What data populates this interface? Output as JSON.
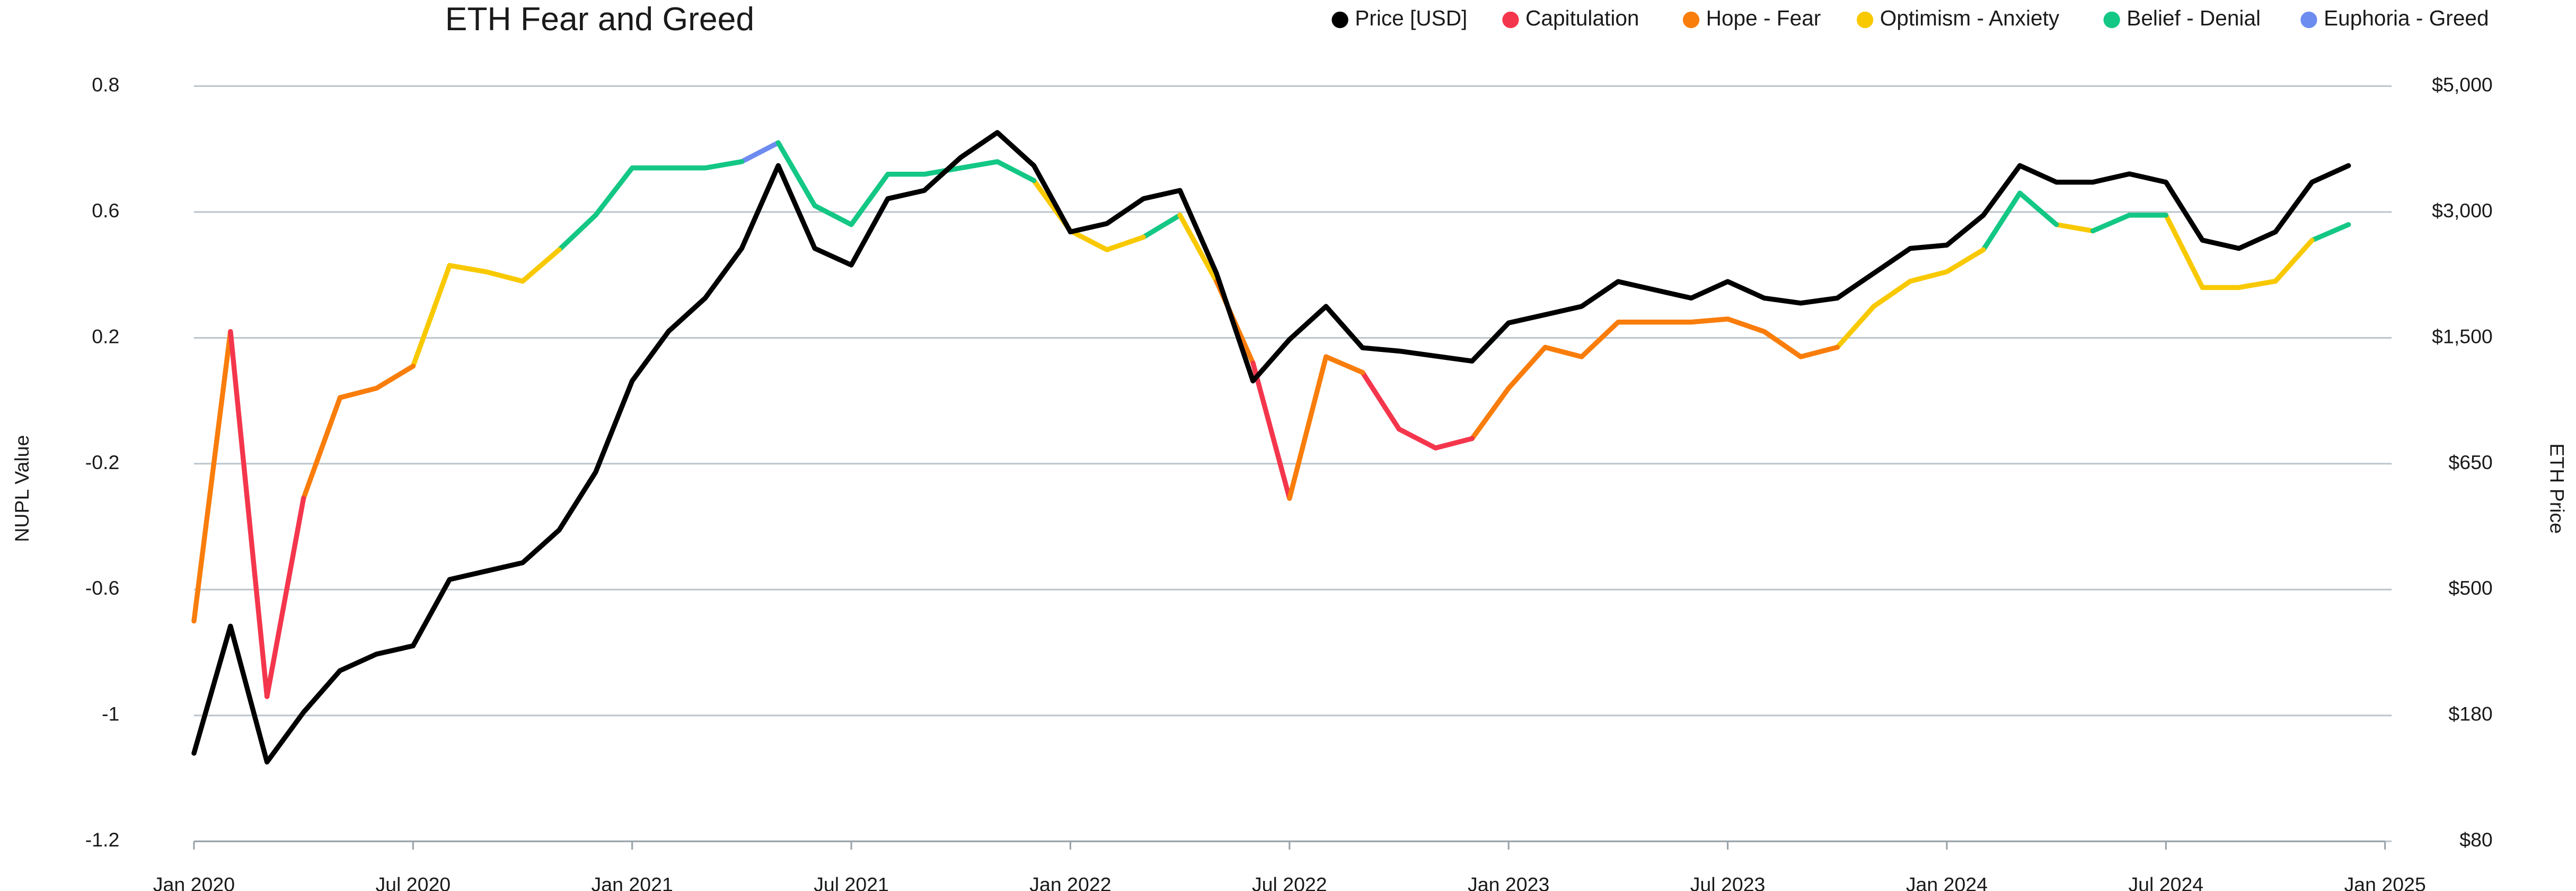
{
  "chart_data": {
    "type": "line",
    "title": "ETH Fear and Greed",
    "ylabel": "NUPL Value",
    "y2label": "ETH Price",
    "x": [
      "2020-01",
      "2020-02",
      "2020-03",
      "2020-04",
      "2020-05",
      "2020-06",
      "2020-07",
      "2020-08",
      "2020-09",
      "2020-10",
      "2020-11",
      "2020-12",
      "2021-01",
      "2021-02",
      "2021-03",
      "2021-04",
      "2021-05",
      "2021-06",
      "2021-07",
      "2021-08",
      "2021-09",
      "2021-10",
      "2021-11",
      "2021-12",
      "2022-01",
      "2022-02",
      "2022-03",
      "2022-04",
      "2022-05",
      "2022-06",
      "2022-07",
      "2022-08",
      "2022-09",
      "2022-10",
      "2022-11",
      "2022-12",
      "2023-01",
      "2023-02",
      "2023-03",
      "2023-04",
      "2023-05",
      "2023-06",
      "2023-07",
      "2023-08",
      "2023-09",
      "2023-10",
      "2023-11",
      "2023-12",
      "2024-01",
      "2024-02",
      "2024-03",
      "2024-04",
      "2024-05",
      "2024-06",
      "2024-07",
      "2024-08",
      "2024-09",
      "2024-10",
      "2024-11",
      "2024-12"
    ],
    "xlim": [
      "2020-01",
      "2025-01"
    ],
    "xticks": [
      {
        "value": "2020-01",
        "label": "Jan 2020"
      },
      {
        "value": "2020-07",
        "label": "Jul 2020"
      },
      {
        "value": "2021-01",
        "label": "Jan 2021"
      },
      {
        "value": "2021-07",
        "label": "Jul 2021"
      },
      {
        "value": "2022-01",
        "label": "Jan 2022"
      },
      {
        "value": "2022-07",
        "label": "Jul 2022"
      },
      {
        "value": "2023-01",
        "label": "Jan 2023"
      },
      {
        "value": "2023-07",
        "label": "Jul 2023"
      },
      {
        "value": "2024-01",
        "label": "Jan 2024"
      },
      {
        "value": "2024-07",
        "label": "Jul 2024"
      },
      {
        "value": "2025-01",
        "label": "Jan 2025"
      }
    ],
    "ylim": [
      -1.2,
      0.8
    ],
    "yticks": [
      0.8,
      0.6,
      0.2,
      -0.2,
      -0.6,
      -1,
      -1.2
    ],
    "y2lim": [
      80,
      5000
    ],
    "y2ticks": [
      {
        "value": 5000,
        "label": "$5,000"
      },
      {
        "value": 3000,
        "label": "$3,000"
      },
      {
        "value": 1500,
        "label": "$1,500"
      },
      {
        "value": 650,
        "label": "$650"
      },
      {
        "value": 500,
        "label": "$500"
      },
      {
        "value": 180,
        "label": "$180"
      },
      {
        "value": 80,
        "label": "$80"
      }
    ],
    "grid": true,
    "legend": "top-right",
    "series": [
      {
        "name": "Price [USD]",
        "color": "#000000",
        "axis": "y2",
        "values": [
          150,
          407,
          143,
          188,
          294,
          336,
          357,
          512,
          522,
          532,
          571,
          640,
          1209,
          1579,
          1974,
          2566,
          3737,
          2566,
          2368,
          3211,
          3342,
          3868,
          4263,
          3737,
          2763,
          2862,
          3211,
          3342,
          2270,
          1209,
          1489,
          1875,
          1433,
          1411,
          1377,
          1343,
          1678,
          1776,
          1875,
          2171,
          2072,
          1974,
          2171,
          1974,
          1914,
          1974,
          2270,
          2566,
          2605,
          2961,
          3737,
          3474,
          3474,
          3605,
          3474,
          2664,
          2566,
          2763,
          3474,
          3737
        ]
      },
      {
        "name": "Capitulation",
        "color": "#f4364c",
        "values": [
          -0.7,
          null,
          -0.94,
          -0.31,
          null,
          null,
          null,
          null,
          null,
          null,
          null,
          null,
          null,
          null,
          null,
          null,
          null,
          null,
          null,
          null,
          null,
          null,
          null,
          null,
          null,
          null,
          null,
          null,
          null,
          null,
          -0.31,
          null,
          null,
          -0.09,
          -0.15,
          -0.12,
          null,
          null,
          null,
          null,
          null,
          null,
          null,
          null,
          null,
          null,
          null,
          null,
          null,
          null,
          null,
          null,
          null,
          null,
          null,
          null,
          null,
          null,
          null,
          null
        ]
      },
      {
        "name": "Hope - Fear",
        "color": "#f97d0b",
        "values": [
          null,
          0.22,
          null,
          null,
          0.01,
          0.04,
          0.11,
          null,
          null,
          null,
          null,
          null,
          null,
          null,
          null,
          null,
          null,
          null,
          null,
          null,
          null,
          null,
          null,
          null,
          null,
          null,
          null,
          null,
          null,
          0.12,
          null,
          0.14,
          0.09,
          null,
          null,
          null,
          0.04,
          0.17,
          0.14,
          0.25,
          0.25,
          0.25,
          0.26,
          0.22,
          0.14,
          0.17,
          null,
          null,
          null,
          null,
          null,
          null,
          null,
          null,
          null,
          null,
          null,
          null,
          null,
          null
        ]
      },
      {
        "name": "Optimism - Anxiety",
        "color": "#f8c900",
        "values": [
          null,
          null,
          null,
          null,
          null,
          null,
          null,
          0.43,
          0.41,
          0.38,
          0.48,
          null,
          null,
          null,
          null,
          null,
          null,
          null,
          null,
          null,
          null,
          null,
          null,
          null,
          0.54,
          0.48,
          0.52,
          null,
          0.38,
          null,
          null,
          null,
          null,
          null,
          null,
          null,
          null,
          null,
          null,
          null,
          null,
          null,
          null,
          null,
          null,
          null,
          0.3,
          0.38,
          0.41,
          0.48,
          null,
          null,
          0.54,
          null,
          null,
          0.36,
          0.36,
          0.38,
          0.51,
          null
        ]
      },
      {
        "name": "Belief - Denial",
        "color": "#13c784",
        "values": [
          null,
          null,
          null,
          null,
          null,
          null,
          null,
          null,
          null,
          null,
          null,
          0.59,
          0.67,
          0.67,
          0.67,
          0.68,
          null,
          0.61,
          0.56,
          0.66,
          0.66,
          0.67,
          0.68,
          0.65,
          null,
          null,
          null,
          0.59,
          null,
          null,
          null,
          null,
          null,
          null,
          null,
          null,
          null,
          null,
          null,
          null,
          null,
          null,
          null,
          null,
          null,
          null,
          null,
          null,
          null,
          null,
          0.63,
          0.56,
          null,
          0.59,
          0.59,
          null,
          null,
          null,
          null,
          0.56
        ]
      },
      {
        "name": "Euphoria - Greed",
        "color": "#6d8cf0",
        "values": [
          null,
          null,
          null,
          null,
          null,
          null,
          null,
          null,
          null,
          null,
          null,
          null,
          null,
          null,
          null,
          null,
          0.71,
          null,
          null,
          null,
          null,
          null,
          null,
          null,
          null,
          null,
          null,
          null,
          null,
          null,
          null,
          null,
          null,
          null,
          null,
          null,
          null,
          null,
          null,
          null,
          null,
          null,
          null,
          null,
          null,
          null,
          null,
          null,
          null,
          null,
          null,
          null,
          null,
          null,
          null,
          null,
          null,
          null,
          null,
          null
        ]
      }
    ]
  }
}
